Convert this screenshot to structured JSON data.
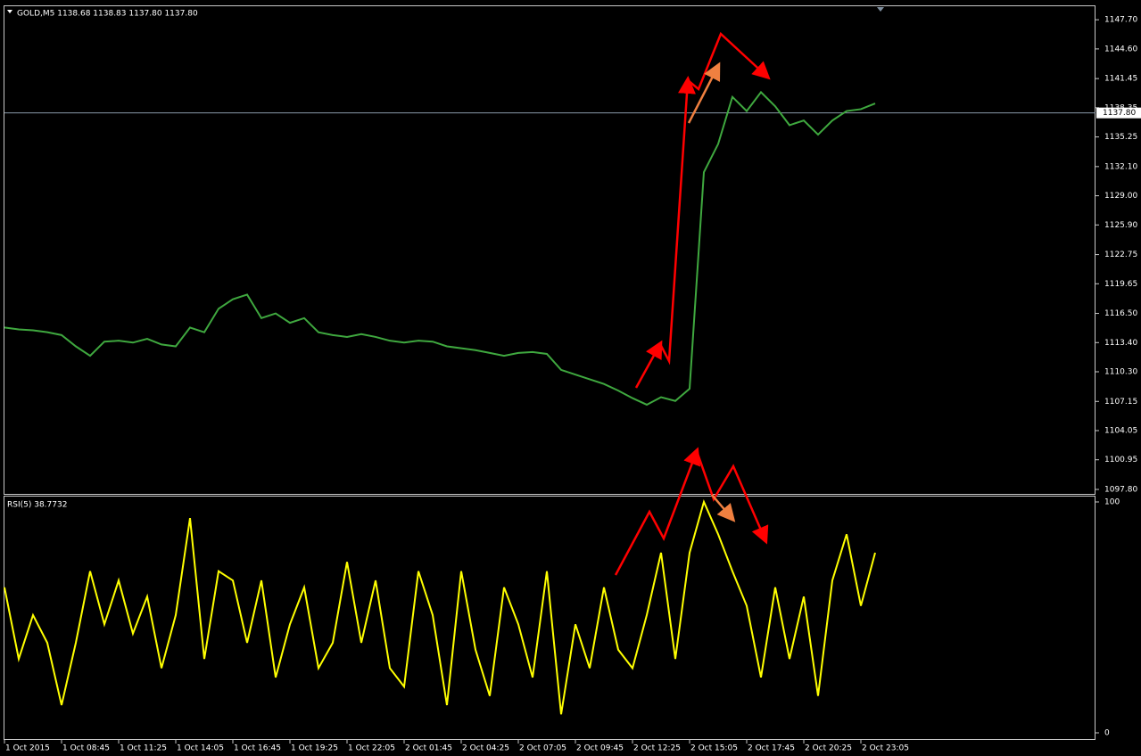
{
  "chart_data": [
    {
      "type": "line",
      "title": "GOLD,M5  1138.68 1138.83 1137.80 1137.80",
      "color": "#3fa83f",
      "values": [
        1115,
        1114.8,
        1114.7,
        1114.5,
        1114.2,
        1113,
        1112,
        1113.5,
        1113.6,
        1113.4,
        1113.8,
        1113.2,
        1113,
        1115,
        1114.5,
        1117,
        1118,
        1118.5,
        1116,
        1116.5,
        1115.5,
        1116,
        1114.5,
        1114.2,
        1114,
        1114.3,
        1114,
        1113.6,
        1113.4,
        1113.6,
        1113.5,
        1113,
        1112.8,
        1112.6,
        1112.3,
        1112,
        1112.3,
        1112.4,
        1112.2,
        1110.5,
        1110,
        1109.5,
        1109,
        1108.3,
        1107.5,
        1106.8,
        1107.6,
        1107.2,
        1108.5,
        1131.5,
        1134.5,
        1139.5,
        1138,
        1140,
        1138.5,
        1136.5,
        1137,
        1135.5,
        1137,
        1138,
        1138.2,
        1138.8
      ],
      "ylim": [
        1097.23,
        1149.23
      ],
      "yticks": [
        {
          "value": 1147.7,
          "label": "1147.70"
        },
        {
          "value": 1144.6,
          "label": "1144.60"
        },
        1141.45,
        1138.35,
        1135.25,
        {
          "value": 1132.1,
          "label": "1132.10"
        },
        {
          "value": 1129,
          "label": "1129.00"
        },
        {
          "value": 1125.9,
          "label": "1125.90"
        },
        1122.75,
        1119.65,
        {
          "value": 1116.5,
          "label": "1116.50"
        },
        {
          "value": 1113.4,
          "label": "1113.40"
        },
        {
          "value": 1110.3,
          "label": "1110.30"
        },
        1107.15,
        1104.05,
        1100.95,
        {
          "value": 1097.8,
          "label": "1097.80"
        }
      ],
      "price_line": 1137.8,
      "price_line_label": "1137.80"
    },
    {
      "type": "line",
      "title": "RSI(5) 38.7732",
      "color": "#ffff00",
      "categories": [
        "1 Oct 2015",
        null,
        null,
        null,
        "1 Oct 08:45",
        null,
        null,
        null,
        "1 Oct 11:25",
        null,
        null,
        null,
        "1 Oct 14:05",
        null,
        null,
        null,
        "1 Oct 16:45",
        null,
        null,
        null,
        "1 Oct 19:25",
        null,
        null,
        null,
        "1 Oct 22:05",
        null,
        null,
        null,
        "2 Oct 01:45",
        null,
        null,
        null,
        "2 Oct 04:25",
        null,
        null,
        null,
        "2 Oct 07:05",
        null,
        null,
        null,
        "2 Oct 09:45",
        null,
        null,
        null,
        "2 Oct 12:25",
        null,
        null,
        null,
        "2 Oct 15:05",
        null,
        null,
        null,
        "2 Oct 17:45",
        null,
        null,
        null,
        "2 Oct 20:25",
        null,
        null,
        null,
        "2 Oct 23:05",
        null
      ],
      "values": [
        63,
        32,
        51,
        39,
        12,
        39,
        70,
        47,
        66,
        43,
        59,
        28,
        51,
        93,
        32,
        70,
        66,
        39,
        66,
        24,
        47,
        63,
        28,
        39,
        74,
        39,
        66,
        28,
        20,
        70,
        51,
        12,
        70,
        36,
        16,
        63,
        47,
        24,
        70,
        8,
        47,
        28,
        63,
        36,
        28,
        51,
        78,
        32,
        78,
        100,
        86,
        70,
        55,
        24,
        63,
        32,
        59,
        16,
        66,
        86,
        55,
        78
      ],
      "ylim": [
        0,
        100
      ],
      "yticks": [
        0,
        100
      ]
    }
  ]
}
